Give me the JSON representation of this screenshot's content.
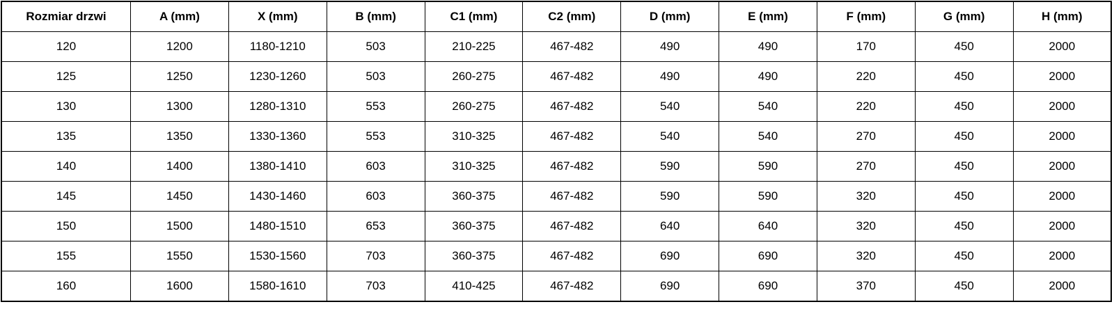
{
  "table": {
    "columns": [
      "Rozmiar drzwi",
      "A (mm)",
      "X (mm)",
      "B (mm)",
      "C1 (mm)",
      "C2 (mm)",
      "D (mm)",
      "E (mm)",
      "F (mm)",
      "G (mm)",
      "H (mm)"
    ],
    "rows": [
      [
        "120",
        "1200",
        "1180-1210",
        "503",
        "210-225",
        "467-482",
        "490",
        "490",
        "170",
        "450",
        "2000"
      ],
      [
        "125",
        "1250",
        "1230-1260",
        "503",
        "260-275",
        "467-482",
        "490",
        "490",
        "220",
        "450",
        "2000"
      ],
      [
        "130",
        "1300",
        "1280-1310",
        "553",
        "260-275",
        "467-482",
        "540",
        "540",
        "220",
        "450",
        "2000"
      ],
      [
        "135",
        "1350",
        "1330-1360",
        "553",
        "310-325",
        "467-482",
        "540",
        "540",
        "270",
        "450",
        "2000"
      ],
      [
        "140",
        "1400",
        "1380-1410",
        "603",
        "310-325",
        "467-482",
        "590",
        "590",
        "270",
        "450",
        "2000"
      ],
      [
        "145",
        "1450",
        "1430-1460",
        "603",
        "360-375",
        "467-482",
        "590",
        "590",
        "320",
        "450",
        "2000"
      ],
      [
        "150",
        "1500",
        "1480-1510",
        "653",
        "360-375",
        "467-482",
        "640",
        "640",
        "320",
        "450",
        "2000"
      ],
      [
        "155",
        "1550",
        "1530-1560",
        "703",
        "360-375",
        "467-482",
        "690",
        "690",
        "320",
        "450",
        "2000"
      ],
      [
        "160",
        "1600",
        "1580-1610",
        "703",
        "410-425",
        "467-482",
        "690",
        "690",
        "370",
        "450",
        "2000"
      ]
    ]
  },
  "colors": {
    "border": "#000000",
    "text": "#000000",
    "background": "#ffffff"
  }
}
